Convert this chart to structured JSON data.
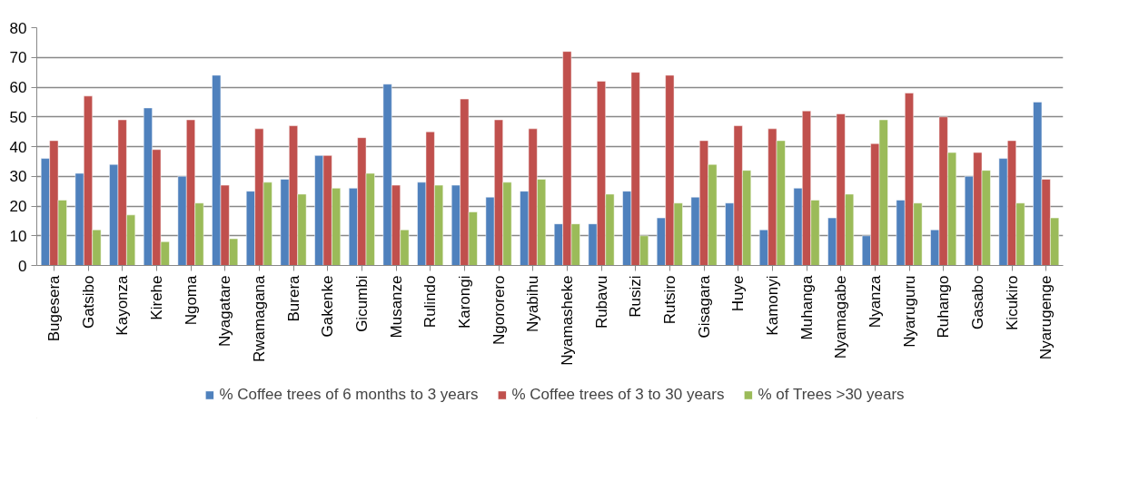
{
  "chart_data": {
    "type": "bar",
    "categories": [
      "Bugesera",
      "Gatsibo",
      "Kayonza",
      "Kirehe",
      "Ngoma",
      "Nyagatare",
      "Rwamagana",
      "Burera",
      "Gakenke",
      "Gicumbi",
      "Musanze",
      "Rulindo",
      "Karongi",
      "Ngororero",
      "Nyabihu",
      "Nyamasheke",
      "Rubavu",
      "Rusizi",
      "Rutsiro",
      "Gisagara",
      "Huye",
      "Kamonyi",
      "Muhanga",
      "Nyamagabe",
      "Nyanza",
      "Nyaruguru",
      "Ruhango",
      "Gasabo",
      "Kicukiro",
      "Nyarugenge"
    ],
    "series": [
      {
        "name": "% Coffee trees of 6 months to 3 years",
        "color": "#4f81bd",
        "values": [
          36,
          31,
          34,
          53,
          30,
          64,
          25,
          29,
          37,
          26,
          61,
          28,
          27,
          23,
          25,
          14,
          14,
          25,
          16,
          23,
          21,
          12,
          26,
          16,
          10,
          22,
          12,
          30,
          36,
          55
        ]
      },
      {
        "name": "% Coffee trees of 3 to 30 years",
        "color": "#c0504d",
        "values": [
          42,
          57,
          49,
          39,
          49,
          27,
          46,
          47,
          37,
          43,
          27,
          45,
          56,
          49,
          46,
          72,
          62,
          65,
          64,
          42,
          47,
          46,
          52,
          51,
          41,
          58,
          50,
          38,
          42,
          29
        ]
      },
      {
        "name": "% of Trees >30 years",
        "color": "#9bbb59",
        "values": [
          22,
          12,
          17,
          8,
          21,
          9,
          28,
          24,
          26,
          31,
          12,
          27,
          18,
          28,
          29,
          14,
          24,
          10,
          21,
          34,
          32,
          42,
          22,
          24,
          49,
          21,
          38,
          32,
          21,
          16
        ]
      }
    ],
    "ylim": [
      0,
      80
    ],
    "yticks": [
      0,
      10,
      20,
      30,
      40,
      50,
      60,
      70,
      80
    ],
    "grid": "y",
    "legend": "bottom"
  }
}
